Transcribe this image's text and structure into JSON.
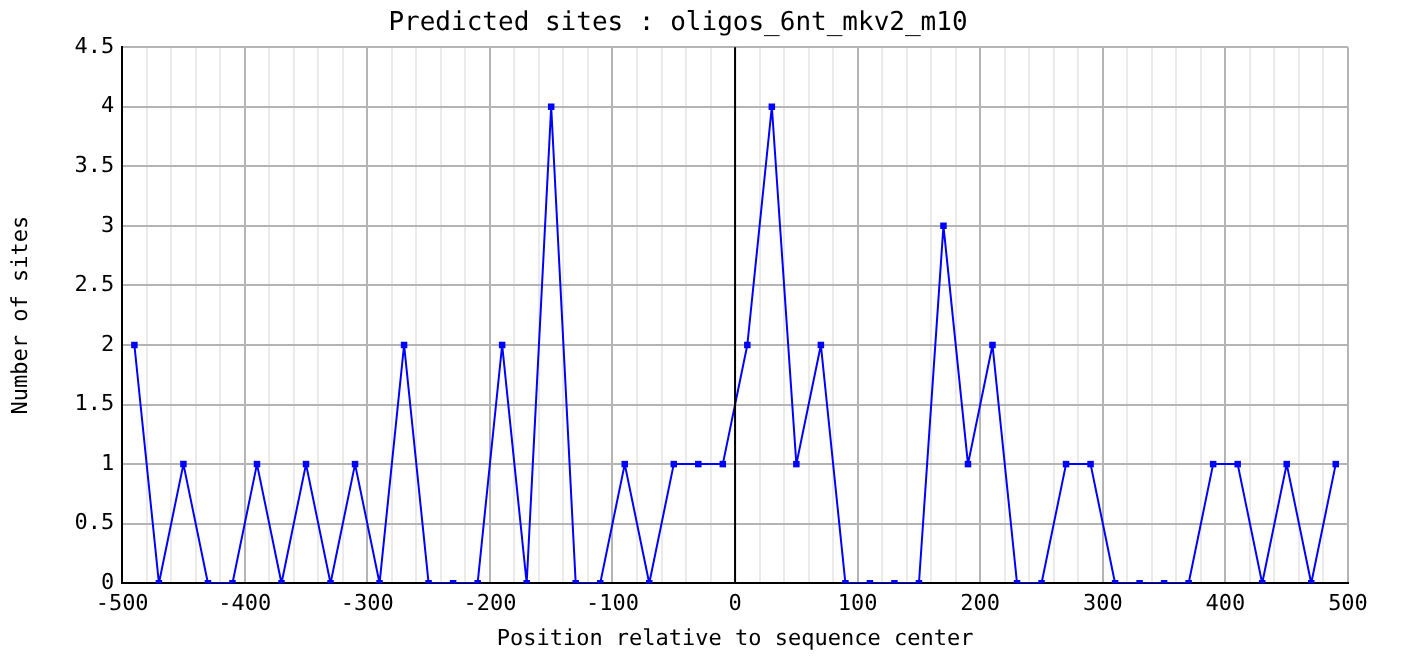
{
  "chart_data": {
    "type": "line",
    "title": "Predicted sites : oligos_6nt_mkv2_m10",
    "xlabel": "Position relative to sequence center",
    "ylabel": "Number of sites",
    "x": [
      -490,
      -470,
      -450,
      -430,
      -410,
      -390,
      -370,
      -350,
      -330,
      -310,
      -290,
      -270,
      -250,
      -230,
      -210,
      -190,
      -170,
      -150,
      -130,
      -110,
      -90,
      -70,
      -50,
      -30,
      -10,
      10,
      30,
      50,
      70,
      90,
      110,
      130,
      150,
      170,
      190,
      210,
      230,
      250,
      270,
      290,
      310,
      330,
      350,
      370,
      390,
      410,
      430,
      450,
      470,
      490
    ],
    "series": [
      {
        "color": "#0000ff",
        "values": [
          2,
          0,
          1,
          0,
          0,
          1,
          0,
          1,
          0,
          1,
          0,
          2,
          0,
          0,
          0,
          2,
          0,
          4,
          0,
          0,
          1,
          0,
          1,
          1,
          1,
          2,
          4,
          1,
          2,
          0,
          0,
          0,
          0,
          3,
          1,
          2,
          0,
          0,
          1,
          1,
          0,
          0,
          0,
          0,
          1,
          1,
          0,
          1,
          0,
          1
        ]
      }
    ],
    "xlim": [
      -500,
      500
    ],
    "xticks": [
      -500,
      {
        "value": -480,
        "label": null
      },
      {
        "value": -460,
        "label": null
      },
      {
        "value": -440,
        "label": null
      },
      {
        "value": -420,
        "label": null
      },
      -400,
      {
        "value": -380,
        "label": null
      },
      {
        "value": -360,
        "label": null
      },
      {
        "value": -340,
        "label": null
      },
      {
        "value": -320,
        "label": null
      },
      -300,
      {
        "value": -280,
        "label": null
      },
      {
        "value": -260,
        "label": null
      },
      {
        "value": -240,
        "label": null
      },
      {
        "value": -220,
        "label": null
      },
      -200,
      {
        "value": -180,
        "label": null
      },
      {
        "value": -160,
        "label": null
      },
      {
        "value": -140,
        "label": null
      },
      {
        "value": -120,
        "label": null
      },
      -100,
      {
        "value": -80,
        "label": null
      },
      {
        "value": -60,
        "label": null
      },
      {
        "value": -40,
        "label": null
      },
      {
        "value": -20,
        "label": null
      },
      0,
      {
        "value": 20,
        "label": null
      },
      {
        "value": 40,
        "label": null
      },
      {
        "value": 60,
        "label": null
      },
      {
        "value": 80,
        "label": null
      },
      100,
      {
        "value": 120,
        "label": null
      },
      {
        "value": 140,
        "label": null
      },
      {
        "value": 160,
        "label": null
      },
      {
        "value": 180,
        "label": null
      },
      200,
      {
        "value": 220,
        "label": null
      },
      {
        "value": 240,
        "label": null
      },
      {
        "value": 260,
        "label": null
      },
      {
        "value": 280,
        "label": null
      },
      300,
      {
        "value": 320,
        "label": null
      },
      {
        "value": 340,
        "label": null
      },
      {
        "value": 360,
        "label": null
      },
      {
        "value": 380,
        "label": null
      },
      400,
      {
        "value": 420,
        "label": null
      },
      {
        "value": 440,
        "label": null
      },
      {
        "value": 460,
        "label": null
      },
      {
        "value": 480,
        "label": null
      },
      500
    ],
    "ylim": [
      0,
      4.5
    ],
    "yticks": [
      0,
      0.5,
      1,
      1.5,
      2,
      2.5,
      3,
      3.5,
      4,
      4.5
    ],
    "ref_lines": [
      {
        "axis": "x",
        "value": 0,
        "color": "#000000"
      }
    ],
    "grid": true,
    "legend": false,
    "marker": "square",
    "line_style": "solid"
  }
}
